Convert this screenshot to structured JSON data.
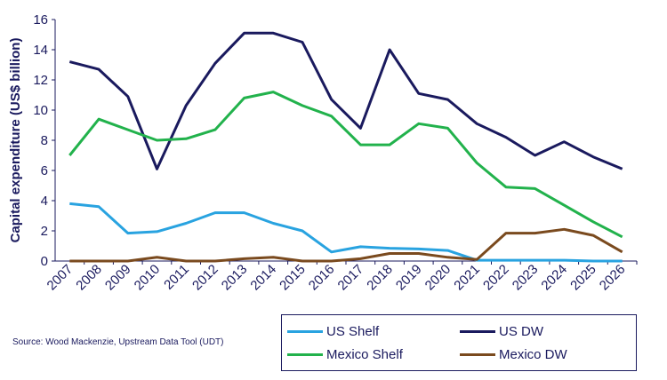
{
  "chart_data": {
    "type": "line",
    "title": "",
    "xlabel": "",
    "ylabel": "Capital expenditure (US$ billion)",
    "ylim": [
      0,
      16
    ],
    "yticks": [
      0,
      2,
      4,
      6,
      8,
      10,
      12,
      14,
      16
    ],
    "grid": false,
    "legend_position": "bottom-right",
    "categories": [
      "2007",
      "2008",
      "2009",
      "2010",
      "2011",
      "2012",
      "2013",
      "2014",
      "2015",
      "2016",
      "2017",
      "2018",
      "2019",
      "2020",
      "2021",
      "2022",
      "2023",
      "2024",
      "2025",
      "2026"
    ],
    "series": [
      {
        "name": "US Shelf",
        "color": "#29a3e0",
        "values": [
          3.8,
          3.6,
          1.85,
          1.95,
          2.5,
          3.2,
          3.2,
          2.5,
          2.0,
          0.6,
          0.95,
          0.85,
          0.8,
          0.7,
          0.05,
          0.05,
          0.05,
          0.05,
          0.0,
          0.0
        ]
      },
      {
        "name": "US DW",
        "color": "#1a1a5e",
        "values": [
          13.2,
          12.7,
          10.9,
          6.1,
          10.3,
          13.1,
          15.1,
          15.1,
          14.5,
          10.7,
          8.8,
          14.0,
          11.1,
          10.7,
          9.1,
          8.2,
          7.0,
          7.9,
          6.9,
          6.1
        ]
      },
      {
        "name": "Mexico Shelf",
        "color": "#22b24c",
        "values": [
          7.0,
          9.4,
          8.7,
          8.0,
          8.1,
          8.7,
          10.8,
          11.2,
          10.3,
          9.6,
          7.7,
          7.7,
          9.1,
          8.8,
          6.5,
          4.9,
          4.8,
          3.7,
          2.6,
          1.6
        ]
      },
      {
        "name": "Mexico DW",
        "color": "#7a4a1e",
        "values": [
          0.0,
          0.0,
          0.0,
          0.25,
          0.0,
          0.0,
          0.15,
          0.25,
          0.0,
          0.0,
          0.15,
          0.5,
          0.5,
          0.25,
          0.1,
          1.85,
          1.85,
          2.1,
          1.7,
          0.6
        ]
      }
    ]
  },
  "legend": {
    "items": [
      {
        "label": "US Shelf",
        "color": "#29a3e0"
      },
      {
        "label": "US DW",
        "color": "#1a1a5e"
      },
      {
        "label": "Mexico Shelf",
        "color": "#22b24c"
      },
      {
        "label": "Mexico DW",
        "color": "#7a4a1e"
      }
    ]
  },
  "source": "Source: Wood Mackenzie, Upstream Data Tool (UDT)"
}
